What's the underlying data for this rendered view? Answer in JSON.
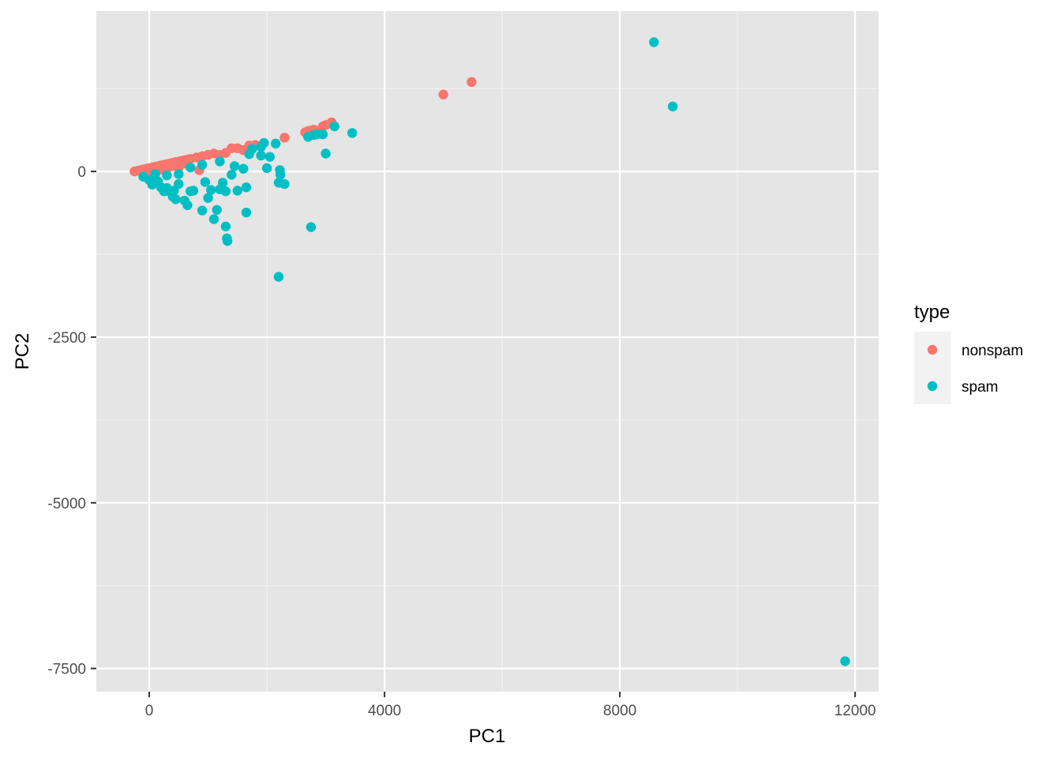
{
  "chart_data": {
    "type": "scatter",
    "title": "",
    "xlabel": "PC1",
    "ylabel": "PC2",
    "xlim": [
      -900,
      12400
    ],
    "ylim": [
      -7850,
      2420
    ],
    "x_ticks": [
      0,
      4000,
      8000,
      12000
    ],
    "x_tick_labels": [
      "0",
      "4000",
      "8000",
      "12000"
    ],
    "y_ticks": [
      -7500,
      -5000,
      -2500,
      0
    ],
    "y_tick_labels": [
      "-7500",
      "-5000",
      "-2500",
      "0"
    ],
    "grid": true,
    "legend": {
      "title": "type",
      "position": "right"
    },
    "series": [
      {
        "name": "nonspam",
        "color": "#F8766D",
        "points": [
          [
            -250,
            0
          ],
          [
            -200,
            10
          ],
          [
            -150,
            20
          ],
          [
            -100,
            30
          ],
          [
            -50,
            40
          ],
          [
            0,
            50
          ],
          [
            50,
            60
          ],
          [
            100,
            70
          ],
          [
            150,
            80
          ],
          [
            200,
            90
          ],
          [
            250,
            100
          ],
          [
            300,
            110
          ],
          [
            350,
            120
          ],
          [
            400,
            130
          ],
          [
            450,
            140
          ],
          [
            500,
            150
          ],
          [
            550,
            160
          ],
          [
            600,
            170
          ],
          [
            650,
            180
          ],
          [
            700,
            190
          ],
          [
            800,
            210
          ],
          [
            900,
            230
          ],
          [
            1000,
            250
          ],
          [
            1100,
            270
          ],
          [
            1200,
            250
          ],
          [
            1300,
            280
          ],
          [
            1400,
            350
          ],
          [
            1500,
            350
          ],
          [
            1600,
            320
          ],
          [
            1700,
            390
          ],
          [
            1800,
            400
          ],
          [
            2300,
            510
          ],
          [
            2650,
            590
          ],
          [
            2700,
            610
          ],
          [
            2750,
            620
          ],
          [
            2800,
            630
          ],
          [
            2850,
            600
          ],
          [
            2950,
            680
          ],
          [
            3000,
            700
          ],
          [
            3100,
            740
          ],
          [
            850,
            20
          ],
          [
            200,
            30
          ],
          [
            400,
            80
          ],
          [
            600,
            120
          ],
          [
            -150,
            5
          ],
          [
            0,
            0
          ],
          [
            100,
            20
          ],
          [
            300,
            40
          ],
          [
            500,
            60
          ],
          [
            5000,
            1160
          ],
          [
            5480,
            1350
          ]
        ]
      },
      {
        "name": "spam",
        "color": "#00BFC4",
        "points": [
          [
            -100,
            -80
          ],
          [
            0,
            -130
          ],
          [
            50,
            -200
          ],
          [
            150,
            -150
          ],
          [
            200,
            -240
          ],
          [
            250,
            -300
          ],
          [
            300,
            -250
          ],
          [
            350,
            -310
          ],
          [
            400,
            -380
          ],
          [
            420,
            -290
          ],
          [
            450,
            -420
          ],
          [
            500,
            -190
          ],
          [
            600,
            -440
          ],
          [
            650,
            -510
          ],
          [
            700,
            -300
          ],
          [
            750,
            -290
          ],
          [
            900,
            -590
          ],
          [
            950,
            -160
          ],
          [
            1000,
            -400
          ],
          [
            1050,
            -280
          ],
          [
            1100,
            -720
          ],
          [
            1150,
            -580
          ],
          [
            1200,
            -270
          ],
          [
            1250,
            -170
          ],
          [
            1300,
            -300
          ],
          [
            1300,
            -830
          ],
          [
            1320,
            -1010
          ],
          [
            1330,
            -1050
          ],
          [
            1400,
            -50
          ],
          [
            1450,
            80
          ],
          [
            1500,
            -290
          ],
          [
            1600,
            40
          ],
          [
            1650,
            -620
          ],
          [
            1650,
            -240
          ],
          [
            1700,
            260
          ],
          [
            1750,
            340
          ],
          [
            1900,
            240
          ],
          [
            1900,
            370
          ],
          [
            1950,
            430
          ],
          [
            2000,
            50
          ],
          [
            2050,
            220
          ],
          [
            2150,
            420
          ],
          [
            2200,
            -170
          ],
          [
            2200,
            -1590
          ],
          [
            2220,
            20
          ],
          [
            2230,
            -50
          ],
          [
            2300,
            -190
          ],
          [
            2700,
            520
          ],
          [
            2800,
            550
          ],
          [
            2850,
            560
          ],
          [
            2950,
            560
          ],
          [
            3000,
            270
          ],
          [
            3150,
            680
          ],
          [
            3450,
            580
          ],
          [
            2750,
            -840
          ],
          [
            1200,
            150
          ],
          [
            900,
            100
          ],
          [
            700,
            60
          ],
          [
            500,
            -40
          ],
          [
            300,
            -60
          ],
          [
            100,
            -40
          ],
          [
            8580,
            1950
          ],
          [
            8900,
            980
          ],
          [
            11830,
            -7390
          ]
        ]
      }
    ]
  }
}
